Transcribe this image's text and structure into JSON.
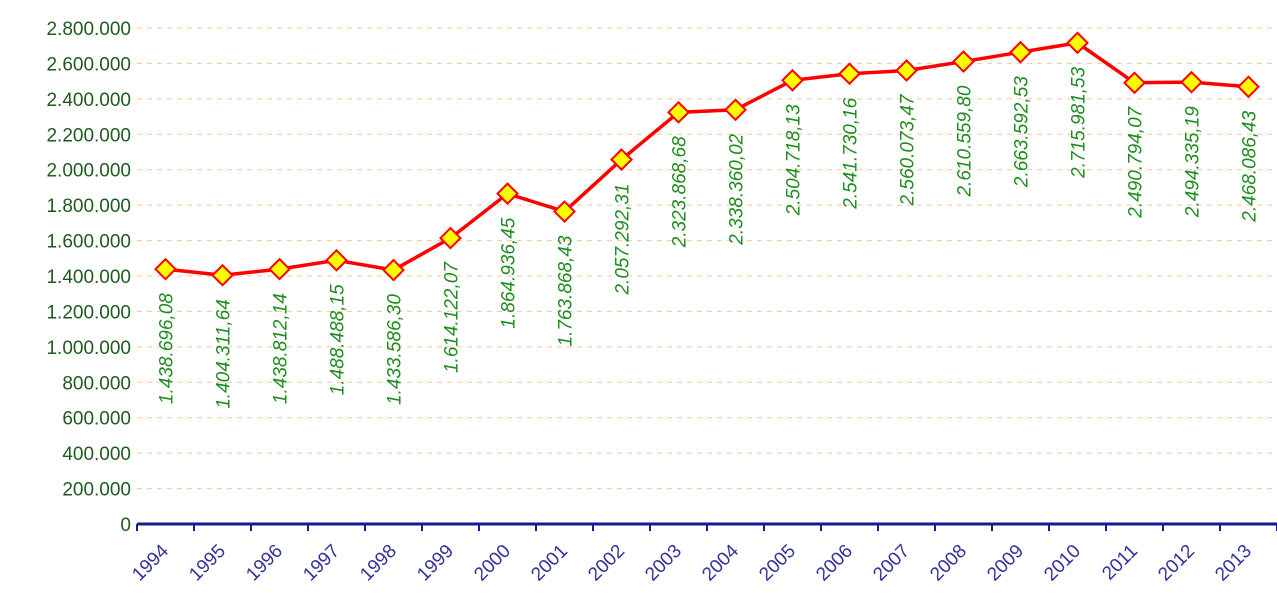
{
  "chart_data": {
    "type": "line",
    "categories": [
      "1994",
      "1995",
      "1996",
      "1997",
      "1998",
      "1999",
      "2000",
      "2001",
      "2002",
      "2003",
      "2004",
      "2005",
      "2006",
      "2007",
      "2008",
      "2009",
      "2010",
      "2011",
      "2012",
      "2013"
    ],
    "series": [
      {
        "color": "#ff0000",
        "marker_color": "#ffff00",
        "values": [
          1438696.08,
          1404311.64,
          1438812.14,
          1488488.15,
          1433586.3,
          1614122.07,
          1864936.45,
          1763868.43,
          2057292.31,
          2323868.68,
          2338360.02,
          2504718.13,
          2541730.16,
          2560073.47,
          2610559.8,
          2663592.53,
          2715981.53,
          2490794.07,
          2494335.19,
          2468086.43
        ],
        "value_labels": [
          "1.438.696,08",
          "1.404.311,64",
          "1.438.812,14",
          "1.488.488,15",
          "1.433.586,30",
          "1.614.122,07",
          "1.864.936,45",
          "1.763.868,43",
          "2.057.292,31",
          "2.323.868,68",
          "2.338.360,02",
          "2.504.718,13",
          "2.541.730,16",
          "2.560.073,47",
          "2.610.559,80",
          "2.663.592,53",
          "2.715.981,53",
          "2.490.794,07",
          "2.494.335,19",
          "2.468.086,43"
        ]
      }
    ],
    "ylim": [
      0,
      2800000
    ],
    "yticks": [
      0,
      {
        "value": 200000,
        "label": "200.000"
      },
      {
        "value": 400000,
        "label": "400.000"
      },
      {
        "value": 600000,
        "label": "600.000"
      },
      {
        "value": 800000,
        "label": "800.000"
      },
      {
        "value": 1000000,
        "label": "1.000.000"
      },
      {
        "value": 1200000,
        "label": "1.200.000"
      },
      {
        "value": 1400000,
        "label": "1.400.000"
      },
      {
        "value": 1600000,
        "label": "1.600.000"
      },
      {
        "value": 1800000,
        "label": "1.800.000"
      },
      {
        "value": 2000000,
        "label": "2.000.000"
      },
      {
        "value": 2200000,
        "label": "2.200.000"
      },
      {
        "value": 2400000,
        "label": "2.400.000"
      },
      {
        "value": 2600000,
        "label": "2.600.000"
      },
      {
        "value": 2800000,
        "label": "2.800.000"
      }
    ],
    "grid": true
  }
}
